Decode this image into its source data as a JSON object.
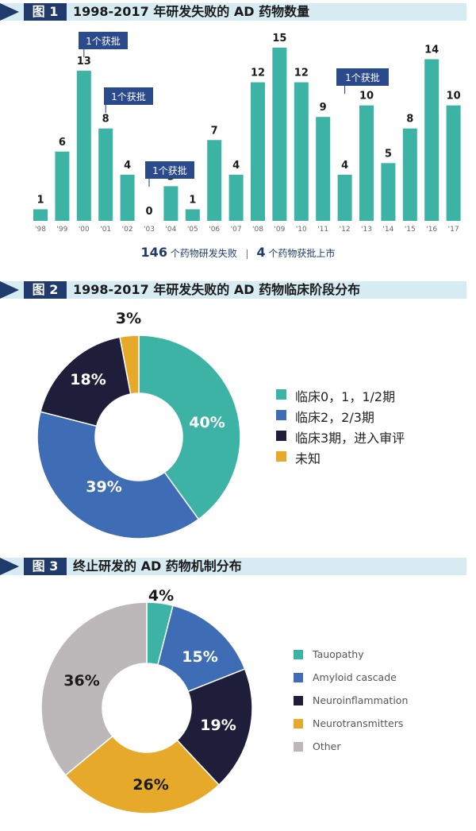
{
  "fig1": {
    "tag": "图 1",
    "title": "1998-2017 年研发失败的 AD 药物数量",
    "footer": {
      "count1": "146",
      "text1": "个药物研发失败",
      "count2": "4",
      "text2": "个药物获批上市"
    },
    "annotation_text": "1个获批"
  },
  "fig2": {
    "tag": "图 2",
    "title": "1998-2017 年研发失败的 AD 药物临床阶段分布"
  },
  "fig3": {
    "tag": "图 3",
    "title": "终止研发的 AD 药物机制分布"
  },
  "chart_data": [
    {
      "type": "bar",
      "title": "1998-2017 年研发失败的 AD 药物数量",
      "categories": [
        "'98",
        "'99",
        "'00",
        "'01",
        "'02",
        "'03",
        "'04",
        "'05",
        "'06",
        "'07",
        "'08",
        "'09",
        "'10",
        "'11",
        "'12",
        "'13",
        "'14",
        "'15",
        "'16",
        "'17"
      ],
      "values": [
        1,
        6,
        13,
        8,
        4,
        0,
        3,
        1,
        7,
        4,
        12,
        15,
        12,
        9,
        4,
        10,
        5,
        8,
        14,
        10
      ],
      "ylim": [
        0,
        15
      ],
      "color": "#3cb3a5",
      "annotations": [
        {
          "category": "'00",
          "text": "1个获批"
        },
        {
          "category": "'01",
          "text": "1个获批"
        },
        {
          "category": "'03",
          "text": "1个获批"
        },
        {
          "category": "'12",
          "text": "1个获批"
        }
      ]
    },
    {
      "type": "pie",
      "title": "1998-2017 年研发失败的 AD 药物临床阶段分布",
      "labels": [
        "临床0，1，1/2期",
        "临床2，2/3期",
        "临床3期，进入审评",
        "未知"
      ],
      "values": [
        40,
        39,
        18,
        3
      ],
      "value_labels": [
        "40%",
        "39%",
        "18%",
        "3%"
      ],
      "colors": [
        "#3cb3a5",
        "#3e6db5",
        "#1e1e3a",
        "#e6a92a"
      ],
      "legend": "right"
    },
    {
      "type": "pie",
      "title": "终止研发的 AD 药物机制分布",
      "labels": [
        "Tauopathy",
        "Amyloid cascade",
        "Neuroinflammation",
        "Neurotransmitters",
        "Other"
      ],
      "values": [
        4,
        15,
        19,
        26,
        36
      ],
      "value_labels": [
        "4%",
        "15%",
        "19%",
        "26%",
        "36%"
      ],
      "colors": [
        "#3cb3a5",
        "#3e6db5",
        "#1e1e3a",
        "#e6a92a",
        "#bcb8b9"
      ],
      "legend": "right"
    }
  ]
}
